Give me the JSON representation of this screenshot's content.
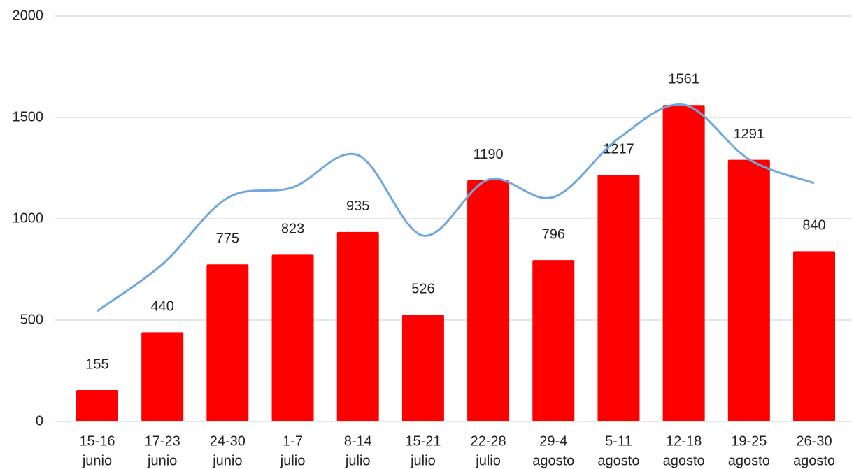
{
  "chart_data": {
    "type": "bar",
    "categories": [
      [
        "15-16",
        "junio"
      ],
      [
        "17-23",
        "junio"
      ],
      [
        "24-30",
        "junio"
      ],
      [
        "1-7",
        "julio"
      ],
      [
        "8-14",
        "julio"
      ],
      [
        "15-21",
        "julio"
      ],
      [
        "22-28",
        "julio"
      ],
      [
        "29-4",
        "agosto"
      ],
      [
        "5-11",
        "agosto"
      ],
      [
        "12-18",
        "agosto"
      ],
      [
        "19-25",
        "agosto"
      ],
      [
        "26-30",
        "agosto"
      ]
    ],
    "series": [
      {
        "type": "bar",
        "color": "#ff0000",
        "values": [
          155,
          440,
          775,
          823,
          935,
          526,
          1190,
          796,
          1217,
          1561,
          1291,
          840
        ]
      },
      {
        "type": "line",
        "color": "#6fa8dc",
        "values": [
          545,
          776,
          1103,
          1155,
          1314,
          917,
          1193,
          1107,
          1397,
          1562,
          1293,
          1176
        ]
      }
    ],
    "ylim": [
      0,
      2000
    ],
    "yticks": [
      0,
      500,
      1000,
      1500,
      2000
    ],
    "grid": true
  }
}
